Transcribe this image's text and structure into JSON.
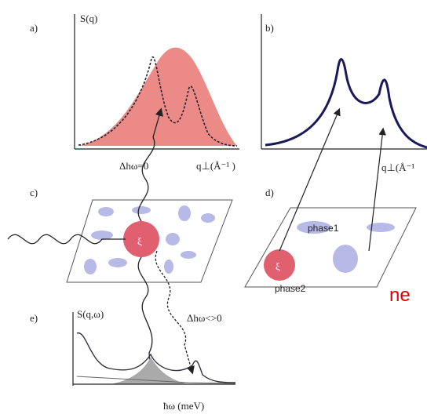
{
  "panel_a": {
    "label": "a)",
    "y_label": "S(q)",
    "x_label": "q⊥(Å⁻¹ )",
    "annotation": "Δhω=0"
  },
  "panel_b": {
    "label": "b)",
    "x_label": "q⊥(Å⁻¹"
  },
  "panel_c": {
    "label": "c)",
    "symbol": "ξ"
  },
  "panel_d": {
    "label": "d)",
    "phase1": "phase1",
    "phase2": "phase2",
    "symbol": "ξ"
  },
  "panel_e": {
    "label": "e)",
    "y_label": "S(q,ω)",
    "x_label": "ħω (meV)",
    "annotation": "Δhω<>0"
  },
  "overflow_text": "ne"
}
